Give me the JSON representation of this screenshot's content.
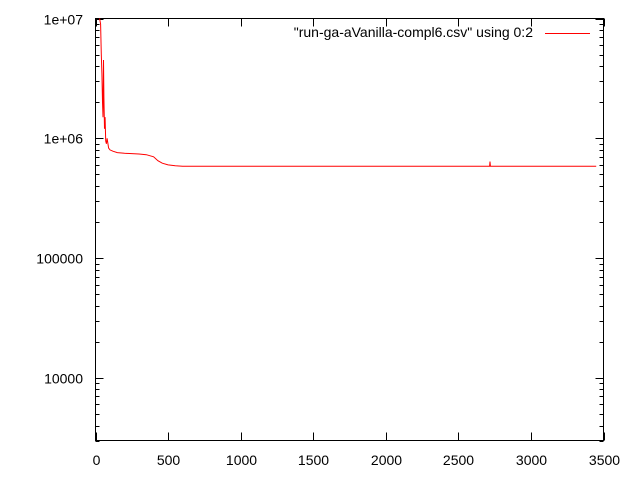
{
  "chart_data": {
    "type": "line",
    "title": "",
    "xlabel": "",
    "ylabel": "",
    "xlim": [
      0,
      3500
    ],
    "ylim": [
      3000,
      10000000
    ],
    "y_scale": "log",
    "grid": false,
    "legend_position": "top-right",
    "x_ticks": [
      {
        "value": 0,
        "label": "0"
      },
      {
        "value": 500,
        "label": "500"
      },
      {
        "value": 1000,
        "label": "1000"
      },
      {
        "value": 1500,
        "label": "1500"
      },
      {
        "value": 2000,
        "label": "2000"
      },
      {
        "value": 2500,
        "label": "2500"
      },
      {
        "value": 3000,
        "label": "3000"
      },
      {
        "value": 3500,
        "label": "3500"
      }
    ],
    "y_ticks": [
      {
        "value": 10000,
        "label": "10000"
      },
      {
        "value": 100000,
        "label": "100000"
      },
      {
        "value": 1000000,
        "label": "1e+06"
      },
      {
        "value": 10000000,
        "label": "1e+07"
      }
    ],
    "series": [
      {
        "name": "\"run-ga-aVanilla-compl6.csv\" using 0:2",
        "color": "#ff0000",
        "x": [
          28,
          35,
          40,
          44,
          48,
          52,
          55,
          58,
          62,
          66,
          70,
          75,
          80,
          90,
          100,
          120,
          150,
          200,
          250,
          300,
          350,
          400,
          430,
          460,
          500,
          550,
          600,
          700,
          800,
          1000,
          1500,
          2000,
          2500,
          2715,
          2718,
          2721,
          3000,
          3450
        ],
        "values": [
          10000000,
          9000000,
          5000000,
          3500000,
          2000000,
          1500000,
          4500000,
          2200000,
          1200000,
          1500000,
          950000,
          900000,
          1000000,
          830000,
          800000,
          780000,
          760000,
          750000,
          745000,
          740000,
          730000,
          700000,
          650000,
          620000,
          600000,
          590000,
          585000,
          585000,
          585000,
          585000,
          585000,
          585000,
          585000,
          585000,
          640000,
          585000,
          585000,
          585000
        ]
      }
    ]
  }
}
